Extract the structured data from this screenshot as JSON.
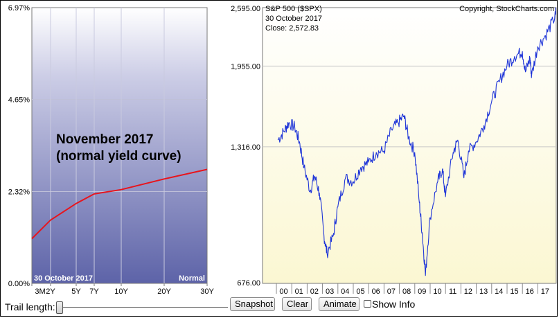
{
  "yield_panel": {
    "y_ticks": [
      "6.97%",
      "4.65%",
      "2.32%",
      "0.00%"
    ],
    "x_ticks": [
      "3M",
      "2Y",
      "5Y",
      "7Y",
      "10Y",
      "20Y",
      "30Y"
    ],
    "date_label": "30  October 2017",
    "curve_label": "Normal",
    "annotation_line1": "November 2017",
    "annotation_line2": "(normal yield curve)",
    "curve_color": "#e8141c"
  },
  "sp_panel": {
    "title": "S&P 500 ($SPX)",
    "date": "30  October 2017",
    "close": "Close: 2,572.83",
    "copyright": "Copyright, StockCharts.com",
    "y_ticks": [
      "2,595.00",
      "1,955.00",
      "1,316.00",
      "676.00"
    ],
    "x_ticks": [
      "00",
      "01",
      "02",
      "03",
      "04",
      "05",
      "06",
      "07",
      "08",
      "09",
      "10",
      "11",
      "12",
      "13",
      "14",
      "15",
      "16",
      "17"
    ],
    "line_color": "#1f35d8"
  },
  "chart_data": [
    {
      "type": "line",
      "title": "",
      "xlabel": "",
      "ylabel": "",
      "x": [
        "3M",
        "2Y",
        "5Y",
        "7Y",
        "10Y",
        "20Y",
        "30Y"
      ],
      "series": [
        {
          "values": [
            1.13,
            1.6,
            2.02,
            2.26,
            2.37,
            2.64,
            2.88
          ]
        }
      ],
      "ylim": [
        0,
        6.97
      ]
    },
    {
      "type": "line",
      "title": "S&P 500 ($SPX)",
      "xlabel": "",
      "ylabel": "",
      "log_scale": true,
      "ylim": [
        676,
        2595
      ],
      "x": [
        1999.6,
        2000.0,
        2000.3,
        2000.7,
        2001.0,
        2001.3,
        2001.7,
        2002.0,
        2002.3,
        2002.6,
        2002.8,
        2003.2,
        2003.5,
        2004.0,
        2004.5,
        2005.0,
        2005.5,
        2006.0,
        2006.5,
        2007.0,
        2007.4,
        2007.8,
        2008.1,
        2008.5,
        2008.8,
        2009.0,
        2009.2,
        2009.5,
        2010.0,
        2010.3,
        2010.5,
        2011.0,
        2011.3,
        2011.7,
        2012.0,
        2012.5,
        2013.0,
        2013.5,
        2014.0,
        2014.5,
        2015.0,
        2015.5,
        2015.7,
        2016.0,
        2016.1,
        2016.5,
        2017.0,
        2017.5,
        2017.83
      ],
      "series": [
        {
          "name": "S&P 500 ($SPX)",
          "values": [
            1360,
            1420,
            1480,
            1450,
            1350,
            1190,
            1060,
            1140,
            1050,
            850,
            780,
            850,
            980,
            1130,
            1110,
            1190,
            1220,
            1280,
            1290,
            1430,
            1480,
            1530,
            1380,
            1280,
            1000,
            850,
            700,
            930,
            1110,
            1180,
            1030,
            1280,
            1360,
            1130,
            1290,
            1350,
            1460,
            1640,
            1810,
            1960,
            2050,
            2100,
            1900,
            2030,
            1860,
            2150,
            2270,
            2440,
            2572.83
          ]
        }
      ]
    }
  ]
}
